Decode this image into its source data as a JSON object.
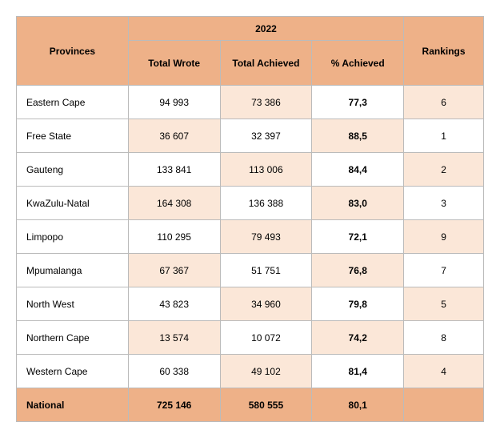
{
  "colors": {
    "header_bg": "#eeb188",
    "alt_row_bg": "#fbe7d8",
    "row_bg": "#ffffff",
    "border": "#bbbbbb",
    "text": "#000000"
  },
  "header": {
    "provinces": "Provinces",
    "year": "2022",
    "total_wrote": "Total Wrote",
    "total_achieved": "Total Achieved",
    "pct_achieved": "% Achieved",
    "rankings": "Rankings"
  },
  "rows": [
    {
      "province": "Eastern Cape",
      "wrote": "94 993",
      "achieved": "73 386",
      "pct": "77,3",
      "rank": "6"
    },
    {
      "province": "Free State",
      "wrote": "36 607",
      "achieved": "32 397",
      "pct": "88,5",
      "rank": "1"
    },
    {
      "province": "Gauteng",
      "wrote": "133 841",
      "achieved": "113 006",
      "pct": "84,4",
      "rank": "2"
    },
    {
      "province": "KwaZulu-Natal",
      "wrote": "164 308",
      "achieved": "136 388",
      "pct": "83,0",
      "rank": "3"
    },
    {
      "province": "Limpopo",
      "wrote": "110 295",
      "achieved": "79 493",
      "pct": "72,1",
      "rank": "9"
    },
    {
      "province": "Mpumalanga",
      "wrote": "67 367",
      "achieved": "51 751",
      "pct": "76,8",
      "rank": "7"
    },
    {
      "province": "North West",
      "wrote": "43 823",
      "achieved": "34 960",
      "pct": "79,8",
      "rank": "5"
    },
    {
      "province": "Northern Cape",
      "wrote": "13 574",
      "achieved": "10 072",
      "pct": "74,2",
      "rank": "8"
    },
    {
      "province": "Western Cape",
      "wrote": "60 338",
      "achieved": "49 102",
      "pct": "81,4",
      "rank": "4"
    }
  ],
  "total": {
    "label": "National",
    "wrote": "725 146",
    "achieved": "580 555",
    "pct": "80,1",
    "rank": ""
  }
}
